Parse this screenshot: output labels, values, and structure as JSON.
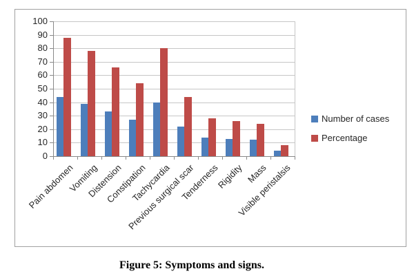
{
  "figure": {
    "caption": "Figure 5: Symptoms and signs."
  },
  "colors": {
    "gridline": "#c6c6c6",
    "axis": "#898989",
    "chart_border": "#a0a0a0",
    "label_text": "#262626"
  },
  "chart_data": {
    "type": "bar",
    "title": "",
    "xlabel": "",
    "ylabel": "",
    "categories": [
      "Pain abdomen",
      "Vomiting",
      "Distension",
      "Constipation",
      "Tachycardia",
      "Previous surgical scar",
      "Tenderness",
      "Rigidity",
      "Mass",
      "Visible peristalsis"
    ],
    "series": [
      {
        "name": "Number of cases",
        "color": "#4d7ebb",
        "values": [
          44,
          39,
          33,
          27,
          40,
          22,
          14,
          13,
          12,
          4
        ]
      },
      {
        "name": "Percentage",
        "color": "#be4b48",
        "values": [
          88,
          78,
          66,
          54,
          80,
          44,
          28,
          26,
          24,
          8
        ]
      }
    ],
    "ylim": [
      0,
      100
    ],
    "yticks": [
      0,
      10,
      20,
      30,
      40,
      50,
      60,
      70,
      80,
      90,
      100
    ],
    "grid": true,
    "legend_position": "right"
  }
}
